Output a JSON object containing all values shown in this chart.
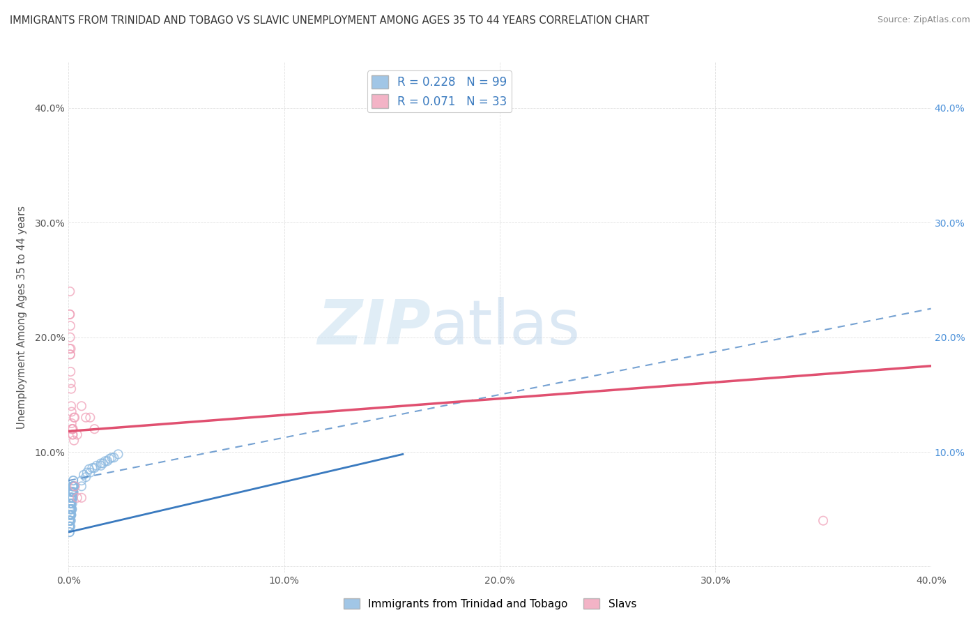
{
  "title": "IMMIGRANTS FROM TRINIDAD AND TOBAGO VS SLAVIC UNEMPLOYMENT AMONG AGES 35 TO 44 YEARS CORRELATION CHART",
  "source": "Source: ZipAtlas.com",
  "ylabel": "Unemployment Among Ages 35 to 44 years",
  "xlim": [
    0,
    0.4
  ],
  "ylim": [
    -0.005,
    0.44
  ],
  "xticks": [
    0.0,
    0.1,
    0.2,
    0.3,
    0.4
  ],
  "yticks": [
    0.0,
    0.1,
    0.2,
    0.3,
    0.4
  ],
  "xtick_labels": [
    "0.0%",
    "10.0%",
    "20.0%",
    "30.0%",
    "40.0%"
  ],
  "ytick_labels": [
    "",
    "10.0%",
    "20.0%",
    "30.0%",
    "40.0%"
  ],
  "right_ytick_labels": [
    "",
    "10.0%",
    "20.0%",
    "30.0%",
    "40.0%"
  ],
  "series1": {
    "label": "Immigrants from Trinidad and Tobago",
    "R": "0.228",
    "N": 99,
    "marker_color": "#8ab8e0",
    "trend_color": "#3a7abf",
    "trend_solid_x0": 0.0,
    "trend_solid_y0": 0.03,
    "trend_solid_x1": 0.155,
    "trend_solid_y1": 0.098,
    "trend_dash_x0": 0.0,
    "trend_dash_y0": 0.075,
    "trend_dash_x1": 0.4,
    "trend_dash_y1": 0.225
  },
  "series2": {
    "label": "Slavs",
    "R": "0.071",
    "N": 33,
    "marker_color": "#f0a0b8",
    "trend_color": "#e05070",
    "trend_x0": 0.0,
    "trend_y0": 0.118,
    "trend_x1": 0.4,
    "trend_y1": 0.175
  },
  "watermark_zip": "ZIP",
  "watermark_atlas": "atlas",
  "background_color": "#ffffff",
  "grid_color": "#cccccc",
  "legend_text_color": "#3a7abf",
  "title_color": "#333333",
  "blue_scatter_x": [
    0.0002,
    0.0003,
    0.0004,
    0.0005,
    0.0005,
    0.0006,
    0.0006,
    0.0007,
    0.0007,
    0.0008,
    0.0008,
    0.0009,
    0.0009,
    0.001,
    0.001,
    0.001,
    0.0011,
    0.0011,
    0.0012,
    0.0012,
    0.0013,
    0.0013,
    0.0014,
    0.0014,
    0.0015,
    0.0015,
    0.0016,
    0.0016,
    0.0017,
    0.0018,
    0.0018,
    0.0019,
    0.002,
    0.002,
    0.0021,
    0.0022,
    0.0023,
    0.0024,
    0.0025,
    0.0026,
    0.0003,
    0.0004,
    0.0005,
    0.0006,
    0.0007,
    0.0008,
    0.0009,
    0.001,
    0.0011,
    0.0012,
    0.0004,
    0.0005,
    0.0006,
    0.0007,
    0.0008,
    0.0009,
    0.001,
    0.0011,
    0.0012,
    0.0013,
    0.0003,
    0.0004,
    0.0005,
    0.0006,
    0.0007,
    0.0008,
    0.0009,
    0.001,
    0.0011,
    0.0012,
    0.0013,
    0.0014,
    0.0015,
    0.0016,
    0.0017,
    0.0018,
    0.0019,
    0.002,
    0.0021,
    0.0022,
    0.006,
    0.007,
    0.0085,
    0.0095,
    0.011,
    0.013,
    0.015,
    0.017,
    0.019,
    0.021,
    0.006,
    0.008,
    0.01,
    0.012,
    0.015,
    0.016,
    0.018,
    0.02,
    0.023
  ],
  "blue_scatter_y": [
    0.05,
    0.04,
    0.06,
    0.03,
    0.045,
    0.055,
    0.035,
    0.045,
    0.055,
    0.04,
    0.05,
    0.06,
    0.035,
    0.045,
    0.055,
    0.065,
    0.04,
    0.06,
    0.045,
    0.055,
    0.045,
    0.06,
    0.05,
    0.06,
    0.05,
    0.065,
    0.05,
    0.06,
    0.055,
    0.06,
    0.065,
    0.06,
    0.06,
    0.07,
    0.065,
    0.065,
    0.065,
    0.07,
    0.07,
    0.07,
    0.04,
    0.04,
    0.035,
    0.04,
    0.045,
    0.045,
    0.05,
    0.055,
    0.055,
    0.06,
    0.03,
    0.035,
    0.04,
    0.04,
    0.045,
    0.045,
    0.05,
    0.055,
    0.055,
    0.06,
    0.035,
    0.035,
    0.04,
    0.04,
    0.045,
    0.05,
    0.05,
    0.055,
    0.055,
    0.06,
    0.06,
    0.06,
    0.065,
    0.065,
    0.065,
    0.07,
    0.07,
    0.07,
    0.075,
    0.075,
    0.075,
    0.08,
    0.082,
    0.085,
    0.086,
    0.088,
    0.09,
    0.092,
    0.094,
    0.095,
    0.07,
    0.078,
    0.082,
    0.086,
    0.088,
    0.09,
    0.092,
    0.095,
    0.098
  ],
  "pink_scatter_x": [
    0.0005,
    0.0006,
    0.0007,
    0.0008,
    0.0009,
    0.001,
    0.0012,
    0.0014,
    0.0016,
    0.0018,
    0.0005,
    0.0006,
    0.0007,
    0.0008,
    0.001,
    0.0012,
    0.0014,
    0.0016,
    0.0018,
    0.002,
    0.0025,
    0.0028,
    0.004,
    0.006,
    0.008,
    0.01,
    0.012,
    0.002,
    0.0025,
    0.35,
    0.003,
    0.004,
    0.006
  ],
  "pink_scatter_y": [
    0.19,
    0.22,
    0.185,
    0.21,
    0.17,
    0.19,
    0.155,
    0.135,
    0.12,
    0.12,
    0.22,
    0.24,
    0.2,
    0.185,
    0.16,
    0.14,
    0.125,
    0.12,
    0.115,
    0.12,
    0.11,
    0.13,
    0.115,
    0.14,
    0.13,
    0.13,
    0.12,
    0.115,
    0.13,
    0.04,
    0.07,
    0.06,
    0.06
  ]
}
